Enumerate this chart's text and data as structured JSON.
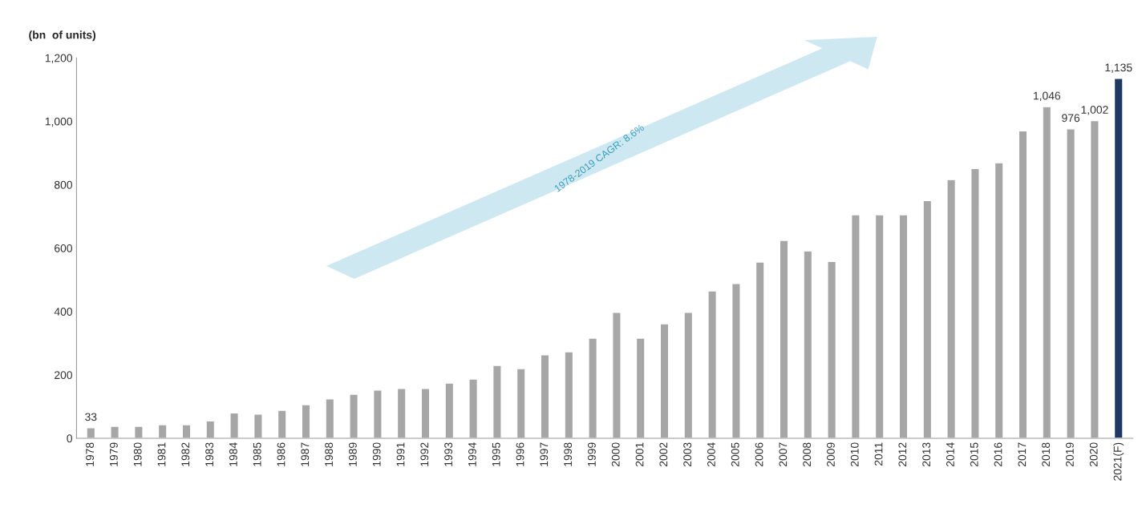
{
  "chart_data": {
    "type": "bar",
    "ylabel": "(bn  of units)",
    "categories": [
      "1978",
      "1979",
      "1980",
      "1981",
      "1982",
      "1983",
      "1984",
      "1985",
      "1986",
      "1987",
      "1988",
      "1989",
      "1990",
      "1991",
      "1992",
      "1993",
      "1994",
      "1995",
      "1996",
      "1997",
      "1998",
      "1999",
      "2000",
      "2001",
      "2002",
      "2003",
      "2004",
      "2005",
      "2006",
      "2007",
      "2008",
      "2009",
      "2010",
      "2011",
      "2012",
      "2013",
      "2014",
      "2015",
      "2016",
      "2017",
      "2018",
      "2019",
      "2020",
      "2021(F)"
    ],
    "values": [
      33,
      38,
      38,
      43,
      43,
      55,
      80,
      76,
      88,
      106,
      124,
      139,
      152,
      157,
      157,
      174,
      187,
      230,
      220,
      263,
      273,
      316,
      397,
      316,
      361,
      397,
      465,
      488,
      556,
      624,
      591,
      558,
      705,
      705,
      705,
      750,
      816,
      851,
      869,
      970,
      1046,
      976,
      1002,
      1135
    ],
    "value_labels": [
      "33",
      null,
      null,
      null,
      null,
      null,
      null,
      null,
      null,
      null,
      null,
      null,
      null,
      null,
      null,
      null,
      null,
      null,
      null,
      null,
      null,
      null,
      null,
      null,
      null,
      null,
      null,
      null,
      null,
      null,
      null,
      null,
      null,
      null,
      null,
      null,
      null,
      null,
      null,
      null,
      "1,046",
      "976",
      "1,002",
      "1,135"
    ],
    "colors": [
      "#a6a6a6",
      "#a6a6a6",
      "#a6a6a6",
      "#a6a6a6",
      "#a6a6a6",
      "#a6a6a6",
      "#a6a6a6",
      "#a6a6a6",
      "#a6a6a6",
      "#a6a6a6",
      "#a6a6a6",
      "#a6a6a6",
      "#a6a6a6",
      "#a6a6a6",
      "#a6a6a6",
      "#a6a6a6",
      "#a6a6a6",
      "#a6a6a6",
      "#a6a6a6",
      "#a6a6a6",
      "#a6a6a6",
      "#a6a6a6",
      "#a6a6a6",
      "#a6a6a6",
      "#a6a6a6",
      "#a6a6a6",
      "#a6a6a6",
      "#a6a6a6",
      "#a6a6a6",
      "#a6a6a6",
      "#a6a6a6",
      "#a6a6a6",
      "#a6a6a6",
      "#a6a6a6",
      "#a6a6a6",
      "#a6a6a6",
      "#a6a6a6",
      "#a6a6a6",
      "#a6a6a6",
      "#a6a6a6",
      "#a6a6a6",
      "#a6a6a6",
      "#a6a6a6",
      "#1f3864"
    ],
    "ylim": [
      0,
      1200
    ],
    "yticks": [
      {
        "value": 0,
        "label": "0"
      },
      {
        "value": 200,
        "label": "200"
      },
      {
        "value": 400,
        "label": "400"
      },
      {
        "value": 600,
        "label": "600"
      },
      {
        "value": 800,
        "label": "800"
      },
      {
        "value": 1000,
        "label": "1,000"
      },
      {
        "value": 1200,
        "label": "1,200"
      }
    ],
    "annotations": [
      "1978-2019 CAGR: 8.6%"
    ],
    "grid": false
  }
}
